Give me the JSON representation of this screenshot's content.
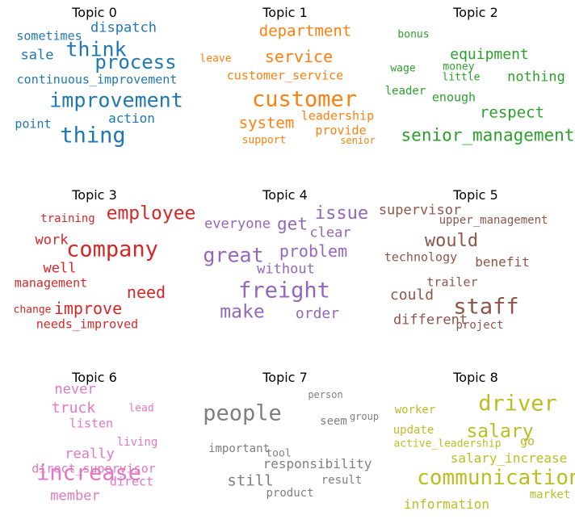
{
  "topics": [
    {
      "title": "Topic 0",
      "color": "#1f77b4",
      "words": [
        {
          "text": "dispatch",
          "size": 17
        },
        {
          "text": "think",
          "size": 25
        },
        {
          "text": "sometimes",
          "size": 15
        },
        {
          "text": "sale",
          "size": 17
        },
        {
          "text": "process",
          "size": 24
        },
        {
          "text": "continuous_improvement",
          "size": 15
        },
        {
          "text": "improvement",
          "size": 25
        },
        {
          "text": "point",
          "size": 15
        },
        {
          "text": "action",
          "size": 16
        },
        {
          "text": "thing",
          "size": 27
        }
      ]
    },
    {
      "title": "Topic 1",
      "color": "#ff7f0e",
      "words": [
        {
          "text": "department",
          "size": 19
        },
        {
          "text": "leave",
          "size": 13
        },
        {
          "text": "service",
          "size": 20
        },
        {
          "text": "customer_service",
          "size": 15
        },
        {
          "text": "customer",
          "size": 27
        },
        {
          "text": "leadership",
          "size": 15
        },
        {
          "text": "system",
          "size": 19
        },
        {
          "text": "provide",
          "size": 15
        },
        {
          "text": "support",
          "size": 13
        },
        {
          "text": "senior",
          "size": 12
        }
      ]
    },
    {
      "title": "Topic 2",
      "color": "#2ca02c",
      "words": [
        {
          "text": "bonus",
          "size": 13
        },
        {
          "text": "equipment",
          "size": 18
        },
        {
          "text": "wage",
          "size": 13
        },
        {
          "text": "money",
          "size": 13
        },
        {
          "text": "little",
          "size": 13
        },
        {
          "text": "nothing",
          "size": 17
        },
        {
          "text": "leader",
          "size": 14
        },
        {
          "text": "enough",
          "size": 15
        },
        {
          "text": "respect",
          "size": 19
        },
        {
          "text": "senior_management",
          "size": 21
        }
      ]
    },
    {
      "title": "Topic 3",
      "color": "#d62728",
      "words": [
        {
          "text": "employee",
          "size": 23
        },
        {
          "text": "training",
          "size": 14
        },
        {
          "text": "work",
          "size": 17
        },
        {
          "text": "company",
          "size": 27
        },
        {
          "text": "well",
          "size": 17
        },
        {
          "text": "management",
          "size": 15
        },
        {
          "text": "need",
          "size": 20
        },
        {
          "text": "change",
          "size": 13
        },
        {
          "text": "improve",
          "size": 20
        },
        {
          "text": "needs_improved",
          "size": 15
        }
      ]
    },
    {
      "title": "Topic 4",
      "color": "#9467bd",
      "words": [
        {
          "text": "issue",
          "size": 22
        },
        {
          "text": "everyone",
          "size": 17
        },
        {
          "text": "get",
          "size": 21
        },
        {
          "text": "clear",
          "size": 17
        },
        {
          "text": "great",
          "size": 25
        },
        {
          "text": "problem",
          "size": 20
        },
        {
          "text": "without",
          "size": 17
        },
        {
          "text": "freight",
          "size": 27
        },
        {
          "text": "make",
          "size": 23
        },
        {
          "text": "order",
          "size": 18
        }
      ]
    },
    {
      "title": "Topic 5",
      "color": "#8c564b",
      "words": [
        {
          "text": "supervisor",
          "size": 17
        },
        {
          "text": "upper_management",
          "size": 14
        },
        {
          "text": "would",
          "size": 22
        },
        {
          "text": "technology",
          "size": 15
        },
        {
          "text": "benefit",
          "size": 16
        },
        {
          "text": "trailer",
          "size": 15
        },
        {
          "text": "could",
          "size": 18
        },
        {
          "text": "staff",
          "size": 27
        },
        {
          "text": "different",
          "size": 17
        },
        {
          "text": "project",
          "size": 14
        }
      ]
    },
    {
      "title": "Topic 6",
      "color": "#e377c2",
      "words": [
        {
          "text": "never",
          "size": 17
        },
        {
          "text": "truck",
          "size": 18
        },
        {
          "text": "lead",
          "size": 13
        },
        {
          "text": "listen",
          "size": 15
        },
        {
          "text": "living",
          "size": 14
        },
        {
          "text": "really",
          "size": 17
        },
        {
          "text": "direct_supervisor",
          "size": 15
        },
        {
          "text": "increase",
          "size": 27
        },
        {
          "text": "direct",
          "size": 15
        },
        {
          "text": "member",
          "size": 17
        }
      ]
    },
    {
      "title": "Topic 7",
      "color": "#7f7f7f",
      "words": [
        {
          "text": "person",
          "size": 12
        },
        {
          "text": "people",
          "size": 27
        },
        {
          "text": "seem",
          "size": 14
        },
        {
          "text": "group",
          "size": 12
        },
        {
          "text": "important",
          "size": 14
        },
        {
          "text": "tool",
          "size": 13
        },
        {
          "text": "responsibility",
          "size": 16
        },
        {
          "text": "still",
          "size": 19
        },
        {
          "text": "result",
          "size": 14
        },
        {
          "text": "product",
          "size": 14
        }
      ]
    },
    {
      "title": "Topic 8",
      "color": "#bcbd22",
      "words": [
        {
          "text": "driver",
          "size": 27
        },
        {
          "text": "worker",
          "size": 14
        },
        {
          "text": "salary",
          "size": 23
        },
        {
          "text": "update",
          "size": 14
        },
        {
          "text": "active_leadership",
          "size": 13
        },
        {
          "text": "go",
          "size": 15
        },
        {
          "text": "salary_increase",
          "size": 16
        },
        {
          "text": "communication",
          "size": 26
        },
        {
          "text": "market",
          "size": 14
        },
        {
          "text": "information",
          "size": 16
        }
      ]
    }
  ]
}
